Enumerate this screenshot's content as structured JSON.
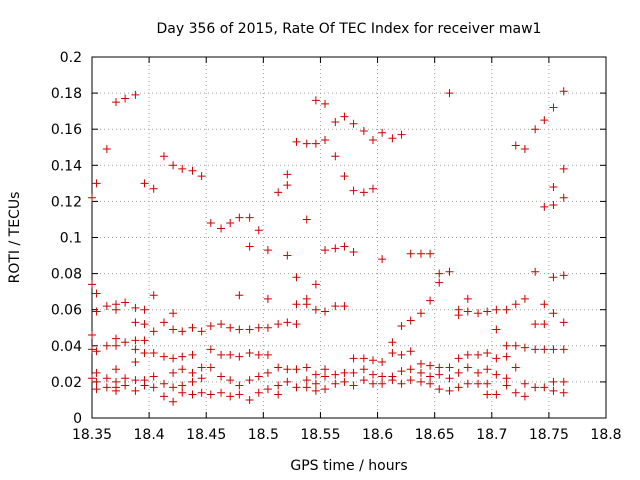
{
  "chart_data": {
    "type": "scatter",
    "title": "Day 356 of 2015, Rate Of TEC Index for receiver maw1",
    "xlabel": "GPS time / hours",
    "ylabel": "ROTI / TECUs",
    "xlim": [
      18.35,
      18.8
    ],
    "ylim": [
      0,
      0.2
    ],
    "x_ticks": [
      "18.35",
      "18.4",
      "18.45",
      "18.5",
      "18.55",
      "18.6",
      "18.65",
      "18.7",
      "18.75",
      "18.8"
    ],
    "y_ticks": [
      "0",
      "0.02",
      "0.04",
      "0.06",
      "0.08",
      "0.1",
      "0.12",
      "0.14",
      "0.16",
      "0.18",
      "0.2"
    ],
    "grid": true,
    "marker": "+",
    "marker_color": "#cc0000",
    "series": [
      {
        "name": "maw1",
        "points": [
          [
            18.35,
            0.122
          ],
          [
            18.35,
            0.074
          ],
          [
            18.35,
            0.046
          ],
          [
            18.35,
            0.038
          ],
          [
            18.35,
            0.022
          ],
          [
            18.354,
            0.13
          ],
          [
            18.354,
            0.069
          ],
          [
            18.354,
            0.059
          ],
          [
            18.354,
            0.037
          ],
          [
            18.354,
            0.025
          ],
          [
            18.354,
            0.02
          ],
          [
            18.354,
            0.016
          ],
          [
            18.363,
            0.149
          ],
          [
            18.363,
            0.062
          ],
          [
            18.363,
            0.04
          ],
          [
            18.363,
            0.022
          ],
          [
            18.363,
            0.017
          ],
          [
            18.371,
            0.175
          ],
          [
            18.371,
            0.063
          ],
          [
            18.371,
            0.044
          ],
          [
            18.371,
            0.027
          ],
          [
            18.371,
            0.017
          ],
          [
            18.371,
            0.06
          ],
          [
            18.371,
            0.04
          ],
          [
            18.371,
            0.02
          ],
          [
            18.371,
            0.015
          ],
          [
            18.379,
            0.177
          ],
          [
            18.379,
            0.064
          ],
          [
            18.379,
            0.042
          ],
          [
            18.379,
            0.022
          ],
          [
            18.379,
            0.018
          ],
          [
            18.388,
            0.179
          ],
          [
            18.388,
            0.061
          ],
          [
            18.388,
            0.053
          ],
          [
            18.388,
            0.043
          ],
          [
            18.388,
            0.038
          ],
          [
            18.388,
            0.031
          ],
          [
            18.388,
            0.021
          ],
          [
            18.388,
            0.015
          ],
          [
            18.396,
            0.13
          ],
          [
            18.396,
            0.06
          ],
          [
            18.396,
            0.052
          ],
          [
            18.396,
            0.043
          ],
          [
            18.396,
            0.036
          ],
          [
            18.396,
            0.021
          ],
          [
            18.396,
            0.018
          ],
          [
            18.404,
            0.127
          ],
          [
            18.404,
            0.068
          ],
          [
            18.404,
            0.048
          ],
          [
            18.404,
            0.036
          ],
          [
            18.404,
            0.023
          ],
          [
            18.404,
            0.017
          ],
          [
            18.413,
            0.145
          ],
          [
            18.413,
            0.053
          ],
          [
            18.413,
            0.034
          ],
          [
            18.413,
            0.019
          ],
          [
            18.413,
            0.012
          ],
          [
            18.421,
            0.14
          ],
          [
            18.421,
            0.058
          ],
          [
            18.421,
            0.049
          ],
          [
            18.421,
            0.033
          ],
          [
            18.421,
            0.025
          ],
          [
            18.421,
            0.017
          ],
          [
            18.421,
            0.009
          ],
          [
            18.429,
            0.138
          ],
          [
            18.429,
            0.048
          ],
          [
            18.429,
            0.034
          ],
          [
            18.429,
            0.027
          ],
          [
            18.429,
            0.018
          ],
          [
            18.429,
            0.014
          ],
          [
            18.438,
            0.137
          ],
          [
            18.438,
            0.05
          ],
          [
            18.438,
            0.035
          ],
          [
            18.438,
            0.025
          ],
          [
            18.438,
            0.02
          ],
          [
            18.438,
            0.013
          ],
          [
            18.446,
            0.134
          ],
          [
            18.446,
            0.048
          ],
          [
            18.446,
            0.028
          ],
          [
            18.446,
            0.022
          ],
          [
            18.446,
            0.014
          ],
          [
            18.454,
            0.108
          ],
          [
            18.454,
            0.051
          ],
          [
            18.454,
            0.038
          ],
          [
            18.454,
            0.028
          ],
          [
            18.454,
            0.013
          ],
          [
            18.463,
            0.105
          ],
          [
            18.463,
            0.052
          ],
          [
            18.463,
            0.035
          ],
          [
            18.463,
            0.023
          ],
          [
            18.463,
            0.014
          ],
          [
            18.471,
            0.108
          ],
          [
            18.471,
            0.05
          ],
          [
            18.471,
            0.035
          ],
          [
            18.471,
            0.021
          ],
          [
            18.471,
            0.012
          ],
          [
            18.479,
            0.111
          ],
          [
            18.479,
            0.068
          ],
          [
            18.479,
            0.049
          ],
          [
            18.479,
            0.034
          ],
          [
            18.479,
            0.018
          ],
          [
            18.479,
            0.013
          ],
          [
            18.488,
            0.111
          ],
          [
            18.488,
            0.095
          ],
          [
            18.488,
            0.049
          ],
          [
            18.488,
            0.036
          ],
          [
            18.488,
            0.021
          ],
          [
            18.488,
            0.01
          ],
          [
            18.496,
            0.104
          ],
          [
            18.496,
            0.05
          ],
          [
            18.496,
            0.035
          ],
          [
            18.496,
            0.023
          ],
          [
            18.496,
            0.014
          ],
          [
            18.504,
            0.093
          ],
          [
            18.504,
            0.066
          ],
          [
            18.504,
            0.05
          ],
          [
            18.504,
            0.035
          ],
          [
            18.504,
            0.025
          ],
          [
            18.504,
            0.016
          ],
          [
            18.513,
            0.125
          ],
          [
            18.513,
            0.052
          ],
          [
            18.513,
            0.028
          ],
          [
            18.513,
            0.018
          ],
          [
            18.513,
            0.013
          ],
          [
            18.521,
            0.135
          ],
          [
            18.521,
            0.129
          ],
          [
            18.521,
            0.09
          ],
          [
            18.521,
            0.053
          ],
          [
            18.521,
            0.027
          ],
          [
            18.521,
            0.02
          ],
          [
            18.529,
            0.153
          ],
          [
            18.529,
            0.078
          ],
          [
            18.529,
            0.063
          ],
          [
            18.529,
            0.052
          ],
          [
            18.529,
            0.027
          ],
          [
            18.529,
            0.017
          ],
          [
            18.538,
            0.152
          ],
          [
            18.538,
            0.11
          ],
          [
            18.538,
            0.066
          ],
          [
            18.538,
            0.063
          ],
          [
            18.538,
            0.028
          ],
          [
            18.538,
            0.021
          ],
          [
            18.538,
            0.017
          ],
          [
            18.546,
            0.176
          ],
          [
            18.546,
            0.152
          ],
          [
            18.546,
            0.074
          ],
          [
            18.546,
            0.06
          ],
          [
            18.546,
            0.024
          ],
          [
            18.546,
            0.019
          ],
          [
            18.546,
            0.015
          ],
          [
            18.554,
            0.174
          ],
          [
            18.554,
            0.154
          ],
          [
            18.554,
            0.093
          ],
          [
            18.554,
            0.059
          ],
          [
            18.554,
            0.027
          ],
          [
            18.554,
            0.023
          ],
          [
            18.554,
            0.016
          ],
          [
            18.563,
            0.164
          ],
          [
            18.563,
            0.145
          ],
          [
            18.563,
            0.094
          ],
          [
            18.563,
            0.062
          ],
          [
            18.563,
            0.024
          ],
          [
            18.563,
            0.019
          ],
          [
            18.571,
            0.167
          ],
          [
            18.571,
            0.134
          ],
          [
            18.571,
            0.095
          ],
          [
            18.571,
            0.062
          ],
          [
            18.571,
            0.025
          ],
          [
            18.571,
            0.02
          ],
          [
            18.579,
            0.163
          ],
          [
            18.579,
            0.126
          ],
          [
            18.579,
            0.092
          ],
          [
            18.579,
            0.033
          ],
          [
            18.579,
            0.025
          ],
          [
            18.579,
            0.018
          ],
          [
            18.588,
            0.159
          ],
          [
            18.588,
            0.125
          ],
          [
            18.588,
            0.033
          ],
          [
            18.588,
            0.027
          ],
          [
            18.588,
            0.021
          ],
          [
            18.596,
            0.154
          ],
          [
            18.596,
            0.127
          ],
          [
            18.596,
            0.032
          ],
          [
            18.596,
            0.024
          ],
          [
            18.596,
            0.019
          ],
          [
            18.604,
            0.158
          ],
          [
            18.604,
            0.088
          ],
          [
            18.604,
            0.031
          ],
          [
            18.604,
            0.023
          ],
          [
            18.604,
            0.019
          ],
          [
            18.613,
            0.155
          ],
          [
            18.613,
            0.042
          ],
          [
            18.613,
            0.036
          ],
          [
            18.613,
            0.023
          ],
          [
            18.613,
            0.021
          ],
          [
            18.621,
            0.157
          ],
          [
            18.621,
            0.051
          ],
          [
            18.621,
            0.035
          ],
          [
            18.621,
            0.026
          ],
          [
            18.621,
            0.019
          ],
          [
            18.629,
            0.091
          ],
          [
            18.629,
            0.054
          ],
          [
            18.629,
            0.037
          ],
          [
            18.629,
            0.027
          ],
          [
            18.629,
            0.021
          ],
          [
            18.638,
            0.091
          ],
          [
            18.638,
            0.058
          ],
          [
            18.638,
            0.03
          ],
          [
            18.638,
            0.025
          ],
          [
            18.638,
            0.02
          ],
          [
            18.646,
            0.091
          ],
          [
            18.646,
            0.065
          ],
          [
            18.646,
            0.029
          ],
          [
            18.646,
            0.023
          ],
          [
            18.646,
            0.019
          ],
          [
            18.654,
            0.08
          ],
          [
            18.654,
            0.075
          ],
          [
            18.654,
            0.028
          ],
          [
            18.654,
            0.024
          ],
          [
            18.654,
            0.016
          ],
          [
            18.663,
            0.18
          ],
          [
            18.663,
            0.081
          ],
          [
            18.663,
            0.028
          ],
          [
            18.663,
            0.022
          ],
          [
            18.663,
            0.015
          ],
          [
            18.671,
            0.06
          ],
          [
            18.671,
            0.057
          ],
          [
            18.671,
            0.033
          ],
          [
            18.671,
            0.025
          ],
          [
            18.671,
            0.017
          ],
          [
            18.679,
            0.066
          ],
          [
            18.679,
            0.059
          ],
          [
            18.679,
            0.035
          ],
          [
            18.679,
            0.028
          ],
          [
            18.679,
            0.019
          ],
          [
            18.688,
            0.058
          ],
          [
            18.688,
            0.035
          ],
          [
            18.688,
            0.025
          ],
          [
            18.688,
            0.019
          ],
          [
            18.696,
            0.059
          ],
          [
            18.696,
            0.036
          ],
          [
            18.696,
            0.027
          ],
          [
            18.696,
            0.019
          ],
          [
            18.696,
            0.013
          ],
          [
            18.704,
            0.06
          ],
          [
            18.704,
            0.049
          ],
          [
            18.704,
            0.033
          ],
          [
            18.704,
            0.024
          ],
          [
            18.704,
            0.013
          ],
          [
            18.713,
            0.06
          ],
          [
            18.713,
            0.04
          ],
          [
            18.713,
            0.034
          ],
          [
            18.713,
            0.022
          ],
          [
            18.713,
            0.018
          ],
          [
            18.721,
            0.151
          ],
          [
            18.721,
            0.063
          ],
          [
            18.721,
            0.04
          ],
          [
            18.721,
            0.028
          ],
          [
            18.721,
            0.014
          ],
          [
            18.729,
            0.149
          ],
          [
            18.729,
            0.066
          ],
          [
            18.729,
            0.039
          ],
          [
            18.729,
            0.019
          ],
          [
            18.729,
            0.012
          ],
          [
            18.738,
            0.16
          ],
          [
            18.738,
            0.081
          ],
          [
            18.738,
            0.052
          ],
          [
            18.738,
            0.038
          ],
          [
            18.738,
            0.017
          ],
          [
            18.746,
            0.165
          ],
          [
            18.746,
            0.117
          ],
          [
            18.746,
            0.063
          ],
          [
            18.746,
            0.052
          ],
          [
            18.746,
            0.038
          ],
          [
            18.746,
            0.017
          ],
          [
            18.754,
            0.172
          ],
          [
            18.754,
            0.128
          ],
          [
            18.754,
            0.118
          ],
          [
            18.754,
            0.078
          ],
          [
            18.754,
            0.058
          ],
          [
            18.754,
            0.038
          ],
          [
            18.754,
            0.02
          ],
          [
            18.754,
            0.015
          ],
          [
            18.763,
            0.181
          ],
          [
            18.763,
            0.138
          ],
          [
            18.763,
            0.122
          ],
          [
            18.763,
            0.079
          ],
          [
            18.763,
            0.053
          ],
          [
            18.763,
            0.038
          ],
          [
            18.763,
            0.02
          ],
          [
            18.763,
            0.014
          ]
        ]
      }
    ]
  }
}
